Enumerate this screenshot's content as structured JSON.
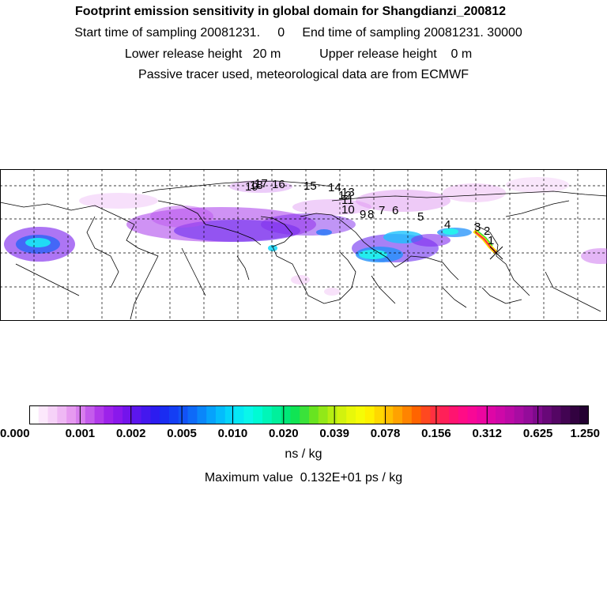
{
  "header": {
    "title": "Footprint emission sensitivity in global domain for Shangdianzi_200812",
    "line2": "Start time of sampling 20081231.     0     End time of sampling 20081231. 30000",
    "line3": "Lower release height   20 m           Upper release height    0 m",
    "line4": "Passive tracer used, meteorological data are from ECMWF"
  },
  "map": {
    "trajectory_labels": [
      "1",
      "2",
      "3",
      "4",
      "5",
      "6",
      "7",
      "8",
      "9",
      "10",
      "11",
      "12",
      "13",
      "14",
      "15",
      "16",
      "17",
      "18",
      "19"
    ],
    "gridlines": "dashed"
  },
  "colorbar": {
    "tick_labels": [
      "0.000",
      "0.001",
      "0.002",
      "0.005",
      "0.010",
      "0.020",
      "0.039",
      "0.078",
      "0.156",
      "0.312",
      "0.625",
      "1.250"
    ],
    "colors": [
      "#ffffff",
      "#fce8fc",
      "#f6d2f8",
      "#efb8f4",
      "#e69af0",
      "#d87eee",
      "#c45cec",
      "#b13aea",
      "#9d22ea",
      "#8a18ec",
      "#7314ec",
      "#5c16ee",
      "#4418ee",
      "#2c1cf0",
      "#1a2cf2",
      "#143ef4",
      "#1252f6",
      "#0e6af8",
      "#0a86fa",
      "#06a2fc",
      "#04bcfc",
      "#04d4fa",
      "#06e8f4",
      "#0af6ea",
      "#00fbd4",
      "#00f6b8",
      "#00f09c",
      "#00e878",
      "#10e454",
      "#3ae23a",
      "#68e420",
      "#92e818",
      "#b6ee12",
      "#d2f20e",
      "#e8f80a",
      "#f6fc06",
      "#fff000",
      "#ffd800",
      "#ffbe00",
      "#ffa200",
      "#ff8400",
      "#ff6400",
      "#ff4820",
      "#ff3040",
      "#ff2058",
      "#ff1470",
      "#ff0c86",
      "#f80896",
      "#ec06a0",
      "#de06a6",
      "#ce08a8",
      "#bc0aa6",
      "#a80ca2",
      "#940c9a",
      "#7e0a8c",
      "#680878",
      "#540664",
      "#420452",
      "#320240",
      "#240232"
    ],
    "unit": "ns / kg",
    "max_value_text": "Maximum value  0.132E+01 ps / kg"
  }
}
